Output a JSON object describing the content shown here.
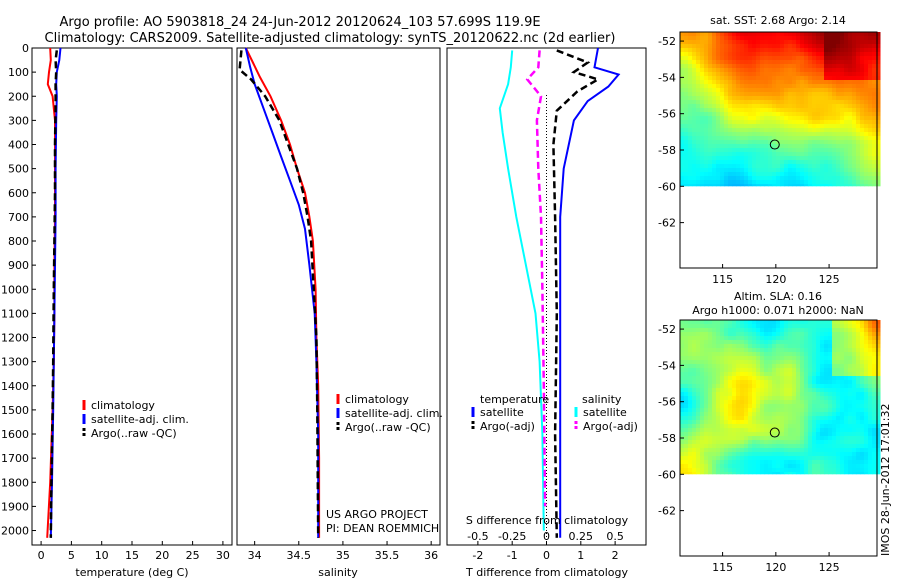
{
  "header": {
    "title_line1": "Argo profile: AO 5903818_24 24-Jun-2012 20120624_103 57.699S 119.9E",
    "title_line2": "Climatology: CARS2009. Satellite-adjusted climatology: synTS_20120622.nc (2d earlier)"
  },
  "colors": {
    "climatology": "#ff0000",
    "satellite": "#0000ff",
    "argo": "#000000",
    "sal_satellite": "#00ffff",
    "sal_argo": "#ff00ff"
  },
  "chart_data": [
    {
      "type": "line",
      "id": "temperature-profile",
      "xlabel": "temperature (deg C)",
      "ylabel": "",
      "xlim": [
        -1.5,
        31.5
      ],
      "ylim": [
        2060,
        0
      ],
      "xticks": [
        "0",
        "5",
        "10",
        "15",
        "20",
        "25",
        "30"
      ],
      "xtick_values": [
        0,
        5,
        10,
        15,
        20,
        25,
        30
      ],
      "yticks": [
        "0",
        "100",
        "200",
        "300",
        "400",
        "500",
        "600",
        "700",
        "800",
        "900",
        "1000",
        "1100",
        "1200",
        "1300",
        "1400",
        "1500",
        "1600",
        "1700",
        "1800",
        "1900",
        "2000"
      ],
      "ytick_values": [
        0,
        100,
        200,
        300,
        400,
        500,
        600,
        700,
        800,
        900,
        1000,
        1100,
        1200,
        1300,
        1400,
        1500,
        1600,
        1700,
        1800,
        1900,
        2000
      ],
      "legend": [
        "climatology",
        "satellite-adj. clim.",
        "Argo(..raw -QC)"
      ],
      "series": [
        {
          "name": "climatology",
          "style": "solid",
          "x": [
            1.5,
            1.6,
            1.3,
            1.1,
            1.9,
            2.3,
            2.3,
            2.3,
            2.2,
            2.2,
            2.1,
            1.9,
            1.5,
            1.0
          ],
          "y": [
            0,
            50,
            100,
            150,
            200,
            300,
            500,
            700,
            900,
            1100,
            1300,
            1500,
            1800,
            2030
          ]
        },
        {
          "name": "satellite-adj. clim.",
          "style": "solid",
          "x": [
            3.2,
            3.0,
            2.6,
            2.5,
            2.6,
            2.5,
            2.4,
            2.4,
            2.3,
            2.2,
            2.1,
            2.0,
            1.8,
            1.6
          ],
          "y": [
            0,
            50,
            100,
            150,
            200,
            300,
            500,
            700,
            900,
            1100,
            1300,
            1500,
            1800,
            2030
          ]
        },
        {
          "name": "Argo(..raw -QC)",
          "style": "dashed",
          "x": [
            2.6,
            2.4,
            2.5,
            2.4,
            2.4,
            2.3,
            2.3,
            2.2,
            2.1,
            2.0,
            1.9,
            1.7,
            1.6
          ],
          "y": [
            10,
            50,
            100,
            150,
            250,
            400,
            600,
            800,
            1000,
            1300,
            1500,
            1800,
            2030
          ]
        }
      ]
    },
    {
      "type": "line",
      "id": "salinity-profile",
      "xlabel": "salinity",
      "ylabel": "",
      "xlim": [
        33.8,
        36.1
      ],
      "ylim": [
        2060,
        0
      ],
      "xticks": [
        "34",
        "34.5",
        "35",
        "35.5",
        "36"
      ],
      "xtick_values": [
        34,
        34.5,
        35,
        35.5,
        36
      ],
      "legend": [
        "climatology",
        "satellite-adj. clim.",
        "Argo(..raw -QC)"
      ],
      "annotation_line1": "US ARGO PROJECT",
      "annotation_line2": "PI: DEAN ROEMMICH",
      "series": [
        {
          "name": "climatology",
          "style": "solid",
          "x": [
            33.9,
            33.98,
            34.06,
            34.18,
            34.3,
            34.4,
            34.48,
            34.57,
            34.62,
            34.66,
            34.69,
            34.7,
            34.72,
            34.73,
            34.73
          ],
          "y": [
            0,
            60,
            120,
            200,
            300,
            400,
            500,
            600,
            700,
            800,
            1000,
            1200,
            1400,
            1700,
            2030
          ]
        },
        {
          "name": "satellite-adj. clim.",
          "style": "solid",
          "x": [
            33.9,
            33.95,
            34.0,
            34.1,
            34.2,
            34.3,
            34.4,
            34.5,
            34.57,
            34.62,
            34.68,
            34.7,
            34.72,
            34.72
          ],
          "y": [
            0,
            80,
            150,
            250,
            350,
            450,
            550,
            650,
            750,
            900,
            1100,
            1300,
            1600,
            2030
          ]
        },
        {
          "name": "Argo(..raw -QC)",
          "style": "dashed",
          "x": [
            33.85,
            33.83,
            33.96,
            34.12,
            34.28,
            34.38,
            34.48,
            34.55,
            34.6,
            34.64,
            34.67,
            34.7,
            34.71,
            34.72
          ],
          "y": [
            10,
            90,
            130,
            200,
            300,
            400,
            500,
            600,
            700,
            800,
            1000,
            1200,
            1500,
            2030
          ]
        }
      ]
    },
    {
      "type": "line",
      "id": "difference-profile",
      "xlabel": "T difference from climatology",
      "xlabel_top": "S difference from climatology",
      "xlim": [
        -2.9,
        2.9
      ],
      "ylim": [
        2060,
        0
      ],
      "xticks": [
        "-2",
        "-1",
        "0",
        "1",
        "2"
      ],
      "xtick_values": [
        -2,
        -1,
        0,
        1,
        2
      ],
      "xticks_sal": [
        "-0.5",
        "-0.25",
        "0",
        "0.25",
        "0.5"
      ],
      "xtick_values_sal": [
        -0.5,
        -0.25,
        0,
        0.25,
        0.5
      ],
      "legend_temperature_title": "temperature",
      "legend_salinity_title": "salinity",
      "legend": [
        "satellite",
        "Argo(-adj)",
        "satellite",
        "Argo(-adj)"
      ],
      "series": [
        {
          "name": "T satellite",
          "quantity": "T",
          "style": "solid",
          "x": [
            1.5,
            1.4,
            2.1,
            1.8,
            1.2,
            0.8,
            0.5,
            0.4,
            0.4,
            0.4,
            0.4,
            0.4
          ],
          "y": [
            0,
            80,
            110,
            160,
            220,
            300,
            500,
            700,
            1000,
            1400,
            1800,
            2030
          ]
        },
        {
          "name": "T Argo(-adj)",
          "quantity": "T",
          "style": "dashed",
          "x": [
            0.3,
            1.2,
            0.8,
            1.5,
            0.9,
            0.3,
            0.2,
            0.25,
            0.3,
            0.25,
            0.3
          ],
          "y": [
            10,
            60,
            100,
            130,
            180,
            260,
            400,
            700,
            1100,
            1600,
            2030
          ]
        },
        {
          "name": "S satellite",
          "quantity": "S",
          "style": "solid",
          "x": [
            -0.25,
            -0.26,
            -0.28,
            -0.34,
            -0.32,
            -0.28,
            -0.22,
            -0.15,
            -0.08,
            -0.05,
            -0.03,
            -0.02
          ],
          "y": [
            10,
            80,
            150,
            250,
            350,
            500,
            700,
            900,
            1100,
            1300,
            1600,
            2000
          ]
        },
        {
          "name": "S Argo(-adj)",
          "quantity": "S",
          "style": "dashed",
          "x": [
            -0.05,
            -0.06,
            -0.14,
            -0.04,
            -0.07,
            -0.06,
            -0.04,
            -0.03,
            -0.02,
            -0.01
          ],
          "y": [
            10,
            80,
            130,
            200,
            300,
            500,
            700,
            1000,
            1400,
            1900
          ]
        }
      ]
    },
    {
      "type": "heatmap",
      "id": "sst-map",
      "title": "sat. SST: 2.68 Argo: 2.14",
      "xlim": [
        111,
        129.5
      ],
      "ylim": [
        -64.5,
        -51.5
      ],
      "xticks": [
        "115",
        "120",
        "125"
      ],
      "xtick_values": [
        115,
        120,
        125
      ],
      "yticks": [
        "-52",
        "-54",
        "-56",
        "-58",
        "-60",
        "-62"
      ],
      "ytick_values": [
        -52,
        -54,
        -56,
        -58,
        -60,
        -62
      ],
      "data_lat_range": [
        -60,
        -51.5
      ],
      "float_position": {
        "lon": 119.9,
        "lat": -57.7
      }
    },
    {
      "type": "heatmap",
      "id": "sla-map",
      "title_line1": "Altim. SLA: 0.16",
      "title_line2": "Argo h1000: 0.071 h2000: NaN",
      "xlim": [
        111,
        129.5
      ],
      "ylim": [
        -64.5,
        -51.5
      ],
      "xticks": [
        "115",
        "120",
        "125"
      ],
      "xtick_values": [
        115,
        120,
        125
      ],
      "yticks": [
        "-52",
        "-54",
        "-56",
        "-58",
        "-60",
        "-62"
      ],
      "ytick_values": [
        -52,
        -54,
        -56,
        -58,
        -60,
        -62
      ],
      "data_lat_range": [
        -60,
        -51.5
      ],
      "float_position": {
        "lon": 119.9,
        "lat": -57.7
      }
    }
  ],
  "footer": {
    "stamp": "IMOS 28-Jun-2012 17:01:32"
  }
}
